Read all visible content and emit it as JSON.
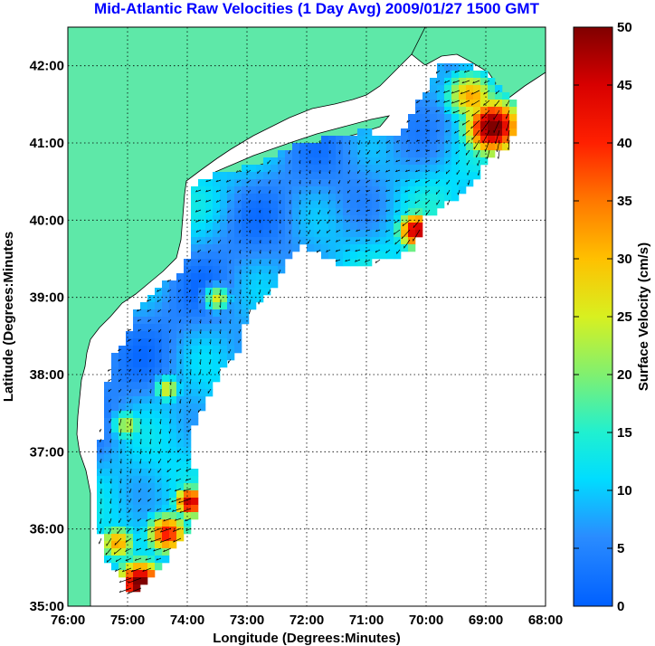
{
  "title": "Mid-Atlantic Raw Velocities (1 Day Avg) 2009/01/27 1500 GMT",
  "map": {
    "xlabel": "Longitude (Degrees:Minutes)",
    "ylabel": "Latitude (Degrees:Minutes",
    "lon_ticks": [
      "76:00",
      "75:00",
      "74:00",
      "73:00",
      "72:00",
      "71:00",
      "70:00",
      "69:00",
      "68:00"
    ],
    "lat_ticks": [
      "35:00",
      "36:00",
      "37:00",
      "38:00",
      "39:00",
      "40:00",
      "41:00",
      "42:00"
    ],
    "lon_range": [
      -76,
      -68
    ],
    "lat_range": [
      35,
      42.5
    ],
    "land_color": "#5ee8a8",
    "grid": "dotted"
  },
  "colorbar": {
    "label": "Surface Velocity (cm/s)",
    "ticks": [
      "0",
      "5",
      "10",
      "15",
      "20",
      "25",
      "30",
      "35",
      "40",
      "45",
      "50"
    ],
    "range": [
      0,
      50
    ],
    "colormap": "jet"
  }
}
